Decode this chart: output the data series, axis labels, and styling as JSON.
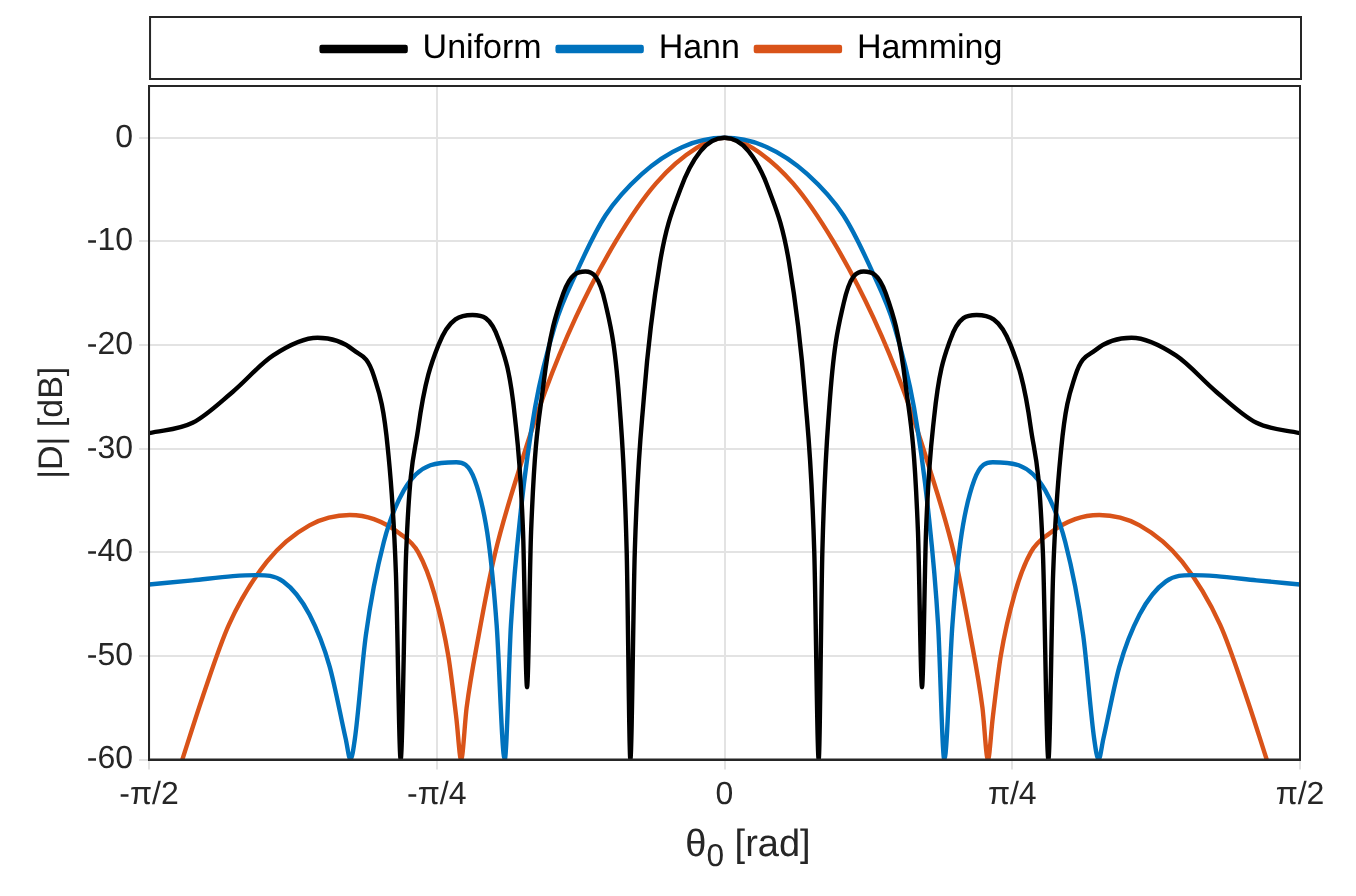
{
  "chart_data": {
    "type": "line",
    "xlabel": "θ$_{0}$ [rad]",
    "ylabel": "|D| [dB]",
    "xlim": [
      -1.5708,
      1.5708
    ],
    "ylim": [
      -60,
      5
    ],
    "xticks": [
      {
        "value": -1.5708,
        "label": "-π/2"
      },
      {
        "value": -0.7854,
        "label": "-π/4"
      },
      0,
      {
        "value": 0.7854,
        "label": "π/4"
      },
      {
        "value": 1.5708,
        "label": "π/2"
      }
    ],
    "yticks": [
      -60,
      -50,
      -40,
      -30,
      -20,
      -10,
      0
    ],
    "grid": true,
    "legend": "top",
    "marker": "none",
    "line_style": "solid",
    "series": [
      {
        "name": "Uniform",
        "color": "#000000",
        "x": [
          -1.5708,
          -1.452,
          -1.342,
          -1.232,
          -1.111,
          -1.012,
          -0.957,
          -0.919,
          -0.897,
          -0.884,
          -0.869,
          -0.836,
          -0.781,
          -0.688,
          -0.616,
          -0.572,
          -0.55,
          -0.539,
          -0.528,
          -0.495,
          -0.44,
          -0.38,
          -0.325,
          -0.286,
          -0.267,
          -0.257,
          -0.245,
          -0.22,
          -0.176,
          -0.121,
          -0.066,
          0,
          0.066,
          0.121,
          0.176,
          0.22,
          0.245,
          0.257,
          0.267,
          0.286,
          0.325,
          0.38,
          0.44,
          0.495,
          0.528,
          0.539,
          0.55,
          0.572,
          0.616,
          0.688,
          0.781,
          0.836,
          0.869,
          0.884,
          0.897,
          0.919,
          0.957,
          1.012,
          1.111,
          1.232,
          1.342,
          1.452,
          1.5708
        ],
        "values": [
          -28.5,
          -27.5,
          -24.5,
          -21,
          -19.3,
          -20.5,
          -23,
          -30,
          -42,
          -60,
          -40,
          -28,
          -20,
          -17.1,
          -19.5,
          -27,
          -38,
          -53,
          -38,
          -24,
          -15,
          -12.9,
          -16,
          -26,
          -40,
          -60,
          -40,
          -25,
          -12,
          -5,
          -1.3,
          0,
          -1.3,
          -5,
          -12,
          -25,
          -40,
          -60,
          -40,
          -26,
          -16,
          -12.9,
          -15,
          -24,
          -38,
          -53,
          -38,
          -27,
          -19.5,
          -17.1,
          -20,
          -28,
          -40,
          -60,
          -42,
          -30,
          -23,
          -20.5,
          -19.3,
          -21,
          -24.5,
          -27.5,
          -28.5
        ]
      },
      {
        "name": "Hann",
        "color": "#0072bd",
        "x": [
          -1.5708,
          -1.452,
          -1.342,
          -1.276,
          -1.205,
          -1.133,
          -1.078,
          -1.034,
          -1.021,
          -1.009,
          -0.979,
          -0.93,
          -0.875,
          -0.803,
          -0.732,
          -0.682,
          -0.644,
          -0.622,
          -0.6,
          -0.583,
          -0.556,
          -0.517,
          -0.462,
          -0.407,
          -0.325,
          -0.226,
          -0.116,
          0,
          0.116,
          0.226,
          0.325,
          0.407,
          0.462,
          0.517,
          0.556,
          0.583,
          0.6,
          0.622,
          0.644,
          0.682,
          0.732,
          0.803,
          0.875,
          0.93,
          0.979,
          1.009,
          1.021,
          1.034,
          1.078,
          1.133,
          1.205,
          1.276,
          1.342,
          1.452,
          1.5708
        ],
        "values": [
          -43.1,
          -42.7,
          -42.3,
          -42.2,
          -42.8,
          -46,
          -51,
          -58,
          -60,
          -58,
          -48,
          -39,
          -34,
          -31.6,
          -31.3,
          -33,
          -39,
          -47,
          -60,
          -47,
          -36,
          -26,
          -18,
          -13.2,
          -7.5,
          -3.5,
          -0.9,
          0,
          -0.9,
          -3.5,
          -7.5,
          -13.2,
          -18,
          -26,
          -36,
          -47,
          -60,
          -47,
          -39,
          -33,
          -31.3,
          -31.6,
          -34,
          -39,
          -48,
          -58,
          -60,
          -58,
          -51,
          -46,
          -42.8,
          -42.2,
          -42.3,
          -42.7,
          -43.1
        ]
      },
      {
        "name": "Hamming",
        "color": "#d95319",
        "x": [
          -1.48,
          -1.425,
          -1.353,
          -1.249,
          -1.133,
          -1.023,
          -0.957,
          -0.886,
          -0.836,
          -0.792,
          -0.754,
          -0.732,
          -0.719,
          -0.704,
          -0.671,
          -0.627,
          -0.556,
          -0.49,
          -0.407,
          -0.297,
          -0.187,
          -0.077,
          0,
          0.077,
          0.187,
          0.297,
          0.407,
          0.49,
          0.556,
          0.627,
          0.671,
          0.704,
          0.719,
          0.732,
          0.754,
          0.792,
          0.836,
          0.886,
          0.957,
          1.023,
          1.133,
          1.249,
          1.353,
          1.425,
          1.48
        ],
        "values": [
          -60,
          -54,
          -47,
          -40.9,
          -37.4,
          -36.4,
          -36.8,
          -38.2,
          -40,
          -44,
          -50,
          -56,
          -60,
          -55,
          -48,
          -40.2,
          -31.5,
          -24.5,
          -17.4,
          -10,
          -4.4,
          -1,
          0,
          -1,
          -4.4,
          -10,
          -17.4,
          -24.5,
          -31.5,
          -40.2,
          -48,
          -55,
          -60,
          -56,
          -50,
          -44,
          -40,
          -38.2,
          -36.8,
          -36.4,
          -37.4,
          -40.9,
          -47,
          -54,
          -60
        ]
      }
    ]
  }
}
